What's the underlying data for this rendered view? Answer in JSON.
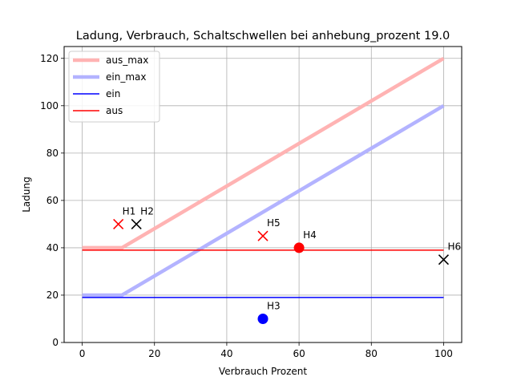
{
  "chart_data": {
    "type": "line",
    "title": "Ladung, Verbrauch, Schaltschwellen bei anhebung_prozent 19.0",
    "xlabel": "Verbrauch Prozent",
    "ylabel": "Ladung",
    "xlim": [
      -5,
      105
    ],
    "ylim": [
      0,
      125
    ],
    "xticks": [
      0,
      20,
      40,
      60,
      80,
      100
    ],
    "yticks": [
      0,
      20,
      40,
      60,
      80,
      100,
      120
    ],
    "grid": true,
    "legend_position": "top-left",
    "series": [
      {
        "name": "aus_max",
        "color": "#ffb3b3",
        "x": [
          0,
          11,
          100
        ],
        "y": [
          40,
          40,
          120
        ]
      },
      {
        "name": "ein_max",
        "color": "#b3b3ff",
        "x": [
          0,
          11,
          100
        ],
        "y": [
          20,
          20,
          100
        ]
      },
      {
        "name": "ein",
        "color": "#0000ff",
        "x": [
          0,
          100
        ],
        "y": [
          19,
          19
        ]
      },
      {
        "name": "aus",
        "color": "#ff0000",
        "x": [
          0,
          100
        ],
        "y": [
          39,
          39
        ]
      }
    ],
    "points": [
      {
        "label": "H1",
        "x": 10,
        "y": 50,
        "marker": "x",
        "color": "#ff0000"
      },
      {
        "label": "H2",
        "x": 15,
        "y": 50,
        "marker": "x",
        "color": "#000000"
      },
      {
        "label": "H3",
        "x": 50,
        "y": 10,
        "marker": "circle",
        "color": "#0000ff"
      },
      {
        "label": "H4",
        "x": 60,
        "y": 40,
        "marker": "circle",
        "color": "#ff0000"
      },
      {
        "label": "H5",
        "x": 50,
        "y": 45,
        "marker": "x",
        "color": "#ff0000"
      },
      {
        "label": "H6",
        "x": 100,
        "y": 35,
        "marker": "x",
        "color": "#000000"
      }
    ]
  }
}
